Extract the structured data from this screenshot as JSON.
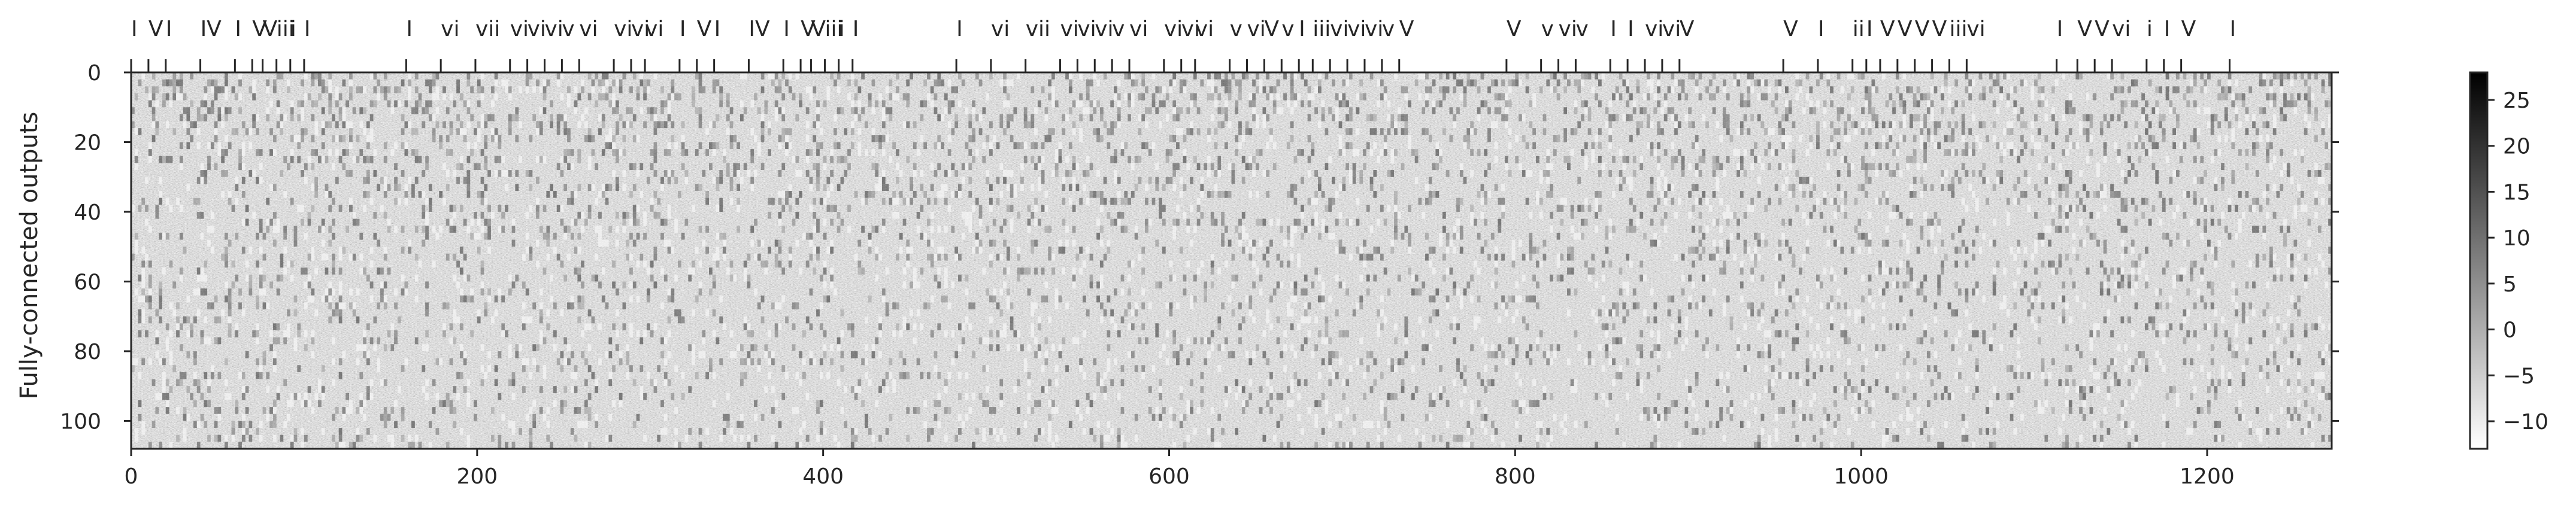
{
  "chart_data": {
    "type": "heatmap",
    "ylabel": "Fully-connected  outputs",
    "xlabel": "",
    "x_ticks": [
      0,
      200,
      400,
      600,
      800,
      1000,
      1200
    ],
    "y_ticks": [
      0,
      20,
      40,
      60,
      80,
      100
    ],
    "xlim": [
      0,
      1272
    ],
    "ylim": [
      108,
      0
    ],
    "colorbar": {
      "ticks": [
        25,
        20,
        15,
        10,
        5,
        0,
        -5,
        -10
      ],
      "tick_labels": [
        "25",
        "20",
        "15",
        "10",
        "5",
        "0",
        "−5",
        "−10"
      ],
      "range": [
        -13,
        28
      ],
      "colormap": "gray_r"
    },
    "top_annotations": [
      {
        "x": 0,
        "label": "I"
      },
      {
        "x": 10,
        "label": "V"
      },
      {
        "x": 20,
        "label": "I"
      },
      {
        "x": 40,
        "label": "IV"
      },
      {
        "x": 60,
        "label": "I"
      },
      {
        "x": 70,
        "label": "V"
      },
      {
        "x": 76,
        "label": "V"
      },
      {
        "x": 84,
        "label": "iii"
      },
      {
        "x": 92,
        "label": "i"
      },
      {
        "x": 100,
        "label": "I"
      },
      {
        "x": 159,
        "label": "I"
      },
      {
        "x": 179,
        "label": "vi"
      },
      {
        "x": 199,
        "label": "vii"
      },
      {
        "x": 219,
        "label": "vi"
      },
      {
        "x": 229,
        "label": "vi"
      },
      {
        "x": 239,
        "label": "vi"
      },
      {
        "x": 249,
        "label": "v"
      },
      {
        "x": 259,
        "label": "vi"
      },
      {
        "x": 279,
        "label": "vi"
      },
      {
        "x": 289,
        "label": "vi"
      },
      {
        "x": 297,
        "label": "vi"
      },
      {
        "x": 317,
        "label": "I"
      },
      {
        "x": 327,
        "label": "V"
      },
      {
        "x": 337,
        "label": "I"
      },
      {
        "x": 357,
        "label": "IV"
      },
      {
        "x": 377,
        "label": "I"
      },
      {
        "x": 387,
        "label": "V"
      },
      {
        "x": 393,
        "label": "V"
      },
      {
        "x": 401,
        "label": "iii"
      },
      {
        "x": 409,
        "label": "i"
      },
      {
        "x": 417,
        "label": "I"
      },
      {
        "x": 477,
        "label": "I"
      },
      {
        "x": 497,
        "label": "vi"
      },
      {
        "x": 517,
        "label": "vii"
      },
      {
        "x": 537,
        "label": "vi"
      },
      {
        "x": 547,
        "label": "vi"
      },
      {
        "x": 557,
        "label": "vi"
      },
      {
        "x": 567,
        "label": "v"
      },
      {
        "x": 577,
        "label": "vi"
      },
      {
        "x": 597,
        "label": "vi"
      },
      {
        "x": 607,
        "label": "vi"
      },
      {
        "x": 615,
        "label": "vi"
      },
      {
        "x": 635,
        "label": "v"
      },
      {
        "x": 645,
        "label": "vi"
      },
      {
        "x": 655,
        "label": "V"
      },
      {
        "x": 665,
        "label": "v"
      },
      {
        "x": 675,
        "label": "I"
      },
      {
        "x": 683,
        "label": "iii"
      },
      {
        "x": 693,
        "label": "vi"
      },
      {
        "x": 703,
        "label": "vi"
      },
      {
        "x": 713,
        "label": "vi"
      },
      {
        "x": 723,
        "label": "v"
      },
      {
        "x": 733,
        "label": "V"
      },
      {
        "x": 795,
        "label": "V"
      },
      {
        "x": 815,
        "label": "v"
      },
      {
        "x": 825,
        "label": "vi"
      },
      {
        "x": 835,
        "label": "v"
      },
      {
        "x": 855,
        "label": "I"
      },
      {
        "x": 865,
        "label": "I"
      },
      {
        "x": 875,
        "label": "vi"
      },
      {
        "x": 885,
        "label": "vi"
      },
      {
        "x": 895,
        "label": "V"
      },
      {
        "x": 955,
        "label": "V"
      },
      {
        "x": 975,
        "label": "I"
      },
      {
        "x": 995,
        "label": "ii"
      },
      {
        "x": 1003,
        "label": "I"
      },
      {
        "x": 1011,
        "label": "V"
      },
      {
        "x": 1021,
        "label": "V"
      },
      {
        "x": 1031,
        "label": "V"
      },
      {
        "x": 1041,
        "label": "V"
      },
      {
        "x": 1051,
        "label": "iii"
      },
      {
        "x": 1061,
        "label": "vi"
      },
      {
        "x": 1113,
        "label": "I"
      },
      {
        "x": 1125,
        "label": "V"
      },
      {
        "x": 1135,
        "label": "V"
      },
      {
        "x": 1145,
        "label": "vi"
      },
      {
        "x": 1165,
        "label": "i"
      },
      {
        "x": 1175,
        "label": "I"
      },
      {
        "x": 1185,
        "label": "V"
      },
      {
        "x": 1213,
        "label": "I"
      }
    ]
  }
}
